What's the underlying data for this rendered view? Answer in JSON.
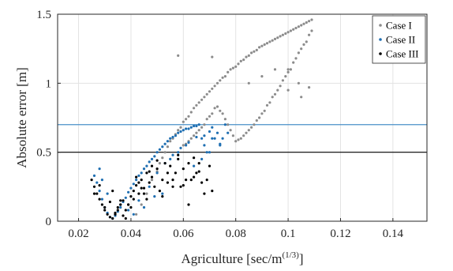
{
  "chart_data": {
    "type": "scatter",
    "xlabel": "Agriculture [sec/m",
    "xlabel_sup": "(1/3)",
    "xlabel_close": "]",
    "ylabel": "Absolute error [m]",
    "xlim": [
      0.012,
      0.153
    ],
    "ylim": [
      0,
      1.5
    ],
    "xticks": [
      0.02,
      0.04,
      0.06,
      0.08,
      0.1,
      0.12,
      0.14
    ],
    "xtick_labels": [
      "0.02",
      "0.04",
      "0.06",
      "0.08",
      "0.1",
      "0.12",
      "0.14"
    ],
    "yticks": [
      0,
      0.5,
      1,
      1.5
    ],
    "ytick_labels": [
      "0",
      "0.5",
      "1",
      "1.5"
    ],
    "grid": true,
    "legend_position": "top-right",
    "reference_lines": [
      {
        "y": 0.7,
        "color": "#4a90c8"
      },
      {
        "y": 0.5,
        "color": "#000000"
      }
    ],
    "series": [
      {
        "name": "Case I",
        "color": "#8c8c8c",
        "x": [
          0.042,
          0.044,
          0.046,
          0.048,
          0.05,
          0.051,
          0.052,
          0.053,
          0.054,
          0.055,
          0.056,
          0.057,
          0.058,
          0.059,
          0.06,
          0.061,
          0.062,
          0.063,
          0.064,
          0.065,
          0.066,
          0.067,
          0.068,
          0.069,
          0.07,
          0.071,
          0.072,
          0.073,
          0.074,
          0.075,
          0.076,
          0.077,
          0.078,
          0.079,
          0.08,
          0.081,
          0.082,
          0.083,
          0.084,
          0.085,
          0.086,
          0.087,
          0.088,
          0.089,
          0.09,
          0.091,
          0.092,
          0.093,
          0.094,
          0.095,
          0.096,
          0.097,
          0.098,
          0.099,
          0.1,
          0.101,
          0.102,
          0.103,
          0.104,
          0.105,
          0.106,
          0.107,
          0.108,
          0.109,
          0.109,
          0.108,
          0.107,
          0.106,
          0.105,
          0.104,
          0.103,
          0.102,
          0.101,
          0.1,
          0.099,
          0.098,
          0.097,
          0.096,
          0.095,
          0.094,
          0.093,
          0.092,
          0.091,
          0.09,
          0.089,
          0.088,
          0.087,
          0.086,
          0.085,
          0.084,
          0.083,
          0.082,
          0.081,
          0.08,
          0.079,
          0.078,
          0.077,
          0.076,
          0.075,
          0.074,
          0.073,
          0.072,
          0.071,
          0.07,
          0.069,
          0.068,
          0.067,
          0.066,
          0.065,
          0.064,
          0.063,
          0.062,
          0.061,
          0.06,
          0.058,
          0.071,
          0.1,
          0.104,
          0.108,
          0.095,
          0.09,
          0.085,
          0.1,
          0.105
        ],
        "y": [
          0.05,
          0.12,
          0.2,
          0.3,
          0.36,
          0.42,
          0.46,
          0.5,
          0.54,
          0.58,
          0.6,
          0.63,
          0.66,
          0.68,
          0.72,
          0.74,
          0.76,
          0.79,
          0.82,
          0.84,
          0.86,
          0.88,
          0.9,
          0.92,
          0.94,
          0.96,
          0.98,
          1.0,
          1.02,
          1.04,
          1.05,
          1.08,
          1.1,
          1.11,
          1.12,
          1.14,
          1.16,
          1.17,
          1.19,
          1.2,
          1.22,
          1.23,
          1.24,
          1.26,
          1.27,
          1.28,
          1.29,
          1.3,
          1.31,
          1.32,
          1.33,
          1.34,
          1.35,
          1.36,
          1.37,
          1.38,
          1.39,
          1.4,
          1.41,
          1.42,
          1.43,
          1.44,
          1.45,
          1.46,
          1.38,
          1.35,
          1.3,
          1.28,
          1.25,
          1.22,
          1.18,
          1.15,
          1.1,
          1.08,
          1.05,
          1.02,
          0.98,
          0.95,
          0.92,
          0.9,
          0.86,
          0.84,
          0.8,
          0.78,
          0.75,
          0.73,
          0.7,
          0.68,
          0.66,
          0.64,
          0.62,
          0.6,
          0.59,
          0.58,
          0.62,
          0.66,
          0.7,
          0.74,
          0.78,
          0.8,
          0.83,
          0.82,
          0.78,
          0.76,
          0.74,
          0.7,
          0.68,
          0.66,
          0.64,
          0.62,
          0.6,
          0.58,
          0.56,
          0.55,
          1.2,
          1.19,
          0.95,
          1.0,
          0.97,
          1.1,
          1.05,
          1.0,
          1.1,
          0.9
        ]
      },
      {
        "name": "Case II",
        "color": "#1f6fb2",
        "x": [
          0.026,
          0.027,
          0.028,
          0.029,
          0.03,
          0.031,
          0.032,
          0.033,
          0.034,
          0.035,
          0.036,
          0.037,
          0.038,
          0.039,
          0.04,
          0.041,
          0.042,
          0.043,
          0.044,
          0.045,
          0.046,
          0.047,
          0.048,
          0.049,
          0.05,
          0.051,
          0.052,
          0.053,
          0.054,
          0.055,
          0.056,
          0.057,
          0.058,
          0.059,
          0.06,
          0.061,
          0.062,
          0.063,
          0.064,
          0.065,
          0.066,
          0.067,
          0.068,
          0.069,
          0.07,
          0.071,
          0.072,
          0.073,
          0.074,
          0.075,
          0.076,
          0.028,
          0.029,
          0.031,
          0.036,
          0.039,
          0.043,
          0.047,
          0.05,
          0.053,
          0.056,
          0.059,
          0.062,
          0.065,
          0.068,
          0.071,
          0.074,
          0.077,
          0.041,
          0.045,
          0.049,
          0.052,
          0.055,
          0.058,
          0.061,
          0.064,
          0.067,
          0.07
        ],
        "y": [
          0.33,
          0.28,
          0.22,
          0.16,
          0.1,
          0.06,
          0.03,
          0.02,
          0.04,
          0.07,
          0.1,
          0.14,
          0.17,
          0.21,
          0.24,
          0.27,
          0.3,
          0.33,
          0.35,
          0.38,
          0.4,
          0.43,
          0.45,
          0.47,
          0.5,
          0.52,
          0.54,
          0.56,
          0.58,
          0.6,
          0.61,
          0.62,
          0.64,
          0.65,
          0.66,
          0.67,
          0.67,
          0.68,
          0.69,
          0.69,
          0.7,
          0.6,
          0.55,
          0.5,
          0.65,
          0.68,
          0.6,
          0.64,
          0.55,
          0.6,
          0.7,
          0.38,
          0.3,
          0.2,
          0.12,
          0.08,
          0.15,
          0.25,
          0.35,
          0.42,
          0.48,
          0.53,
          0.57,
          0.61,
          0.62,
          0.6,
          0.56,
          0.64,
          0.05,
          0.1,
          0.18,
          0.2,
          0.45,
          0.5,
          0.55,
          0.4,
          0.45,
          0.5
        ]
      },
      {
        "name": "Case III",
        "color": "#000000",
        "x": [
          0.025,
          0.026,
          0.027,
          0.028,
          0.029,
          0.03,
          0.031,
          0.032,
          0.033,
          0.034,
          0.035,
          0.036,
          0.037,
          0.038,
          0.039,
          0.04,
          0.041,
          0.042,
          0.043,
          0.044,
          0.045,
          0.046,
          0.047,
          0.048,
          0.049,
          0.05,
          0.051,
          0.052,
          0.053,
          0.054,
          0.055,
          0.056,
          0.057,
          0.058,
          0.059,
          0.06,
          0.061,
          0.062,
          0.063,
          0.064,
          0.065,
          0.066,
          0.067,
          0.068,
          0.069,
          0.07,
          0.071,
          0.026,
          0.028,
          0.03,
          0.032,
          0.034,
          0.036,
          0.038,
          0.04,
          0.042,
          0.044,
          0.046,
          0.048,
          0.05,
          0.052,
          0.054,
          0.056,
          0.058,
          0.06,
          0.062,
          0.064,
          0.066,
          0.033,
          0.035,
          0.037,
          0.039,
          0.041,
          0.043,
          0.045,
          0.047
        ],
        "y": [
          0.3,
          0.25,
          0.2,
          0.16,
          0.12,
          0.08,
          0.05,
          0.03,
          0.02,
          0.06,
          0.1,
          0.12,
          0.15,
          0.08,
          0.12,
          0.18,
          0.22,
          0.26,
          0.28,
          0.3,
          0.2,
          0.35,
          0.28,
          0.32,
          0.25,
          0.38,
          0.22,
          0.3,
          0.42,
          0.28,
          0.4,
          0.3,
          0.35,
          0.45,
          0.25,
          0.38,
          0.3,
          0.42,
          0.3,
          0.32,
          0.35,
          0.42,
          0.28,
          0.2,
          0.3,
          0.4,
          0.22,
          0.2,
          0.26,
          0.1,
          0.14,
          0.05,
          0.15,
          0.02,
          0.1,
          0.32,
          0.24,
          0.16,
          0.4,
          0.44,
          0.18,
          0.35,
          0.25,
          0.48,
          0.26,
          0.12,
          0.46,
          0.36,
          0.22,
          0.08,
          0.04,
          0.12,
          0.16,
          0.2,
          0.24,
          0.36
        ]
      }
    ]
  }
}
